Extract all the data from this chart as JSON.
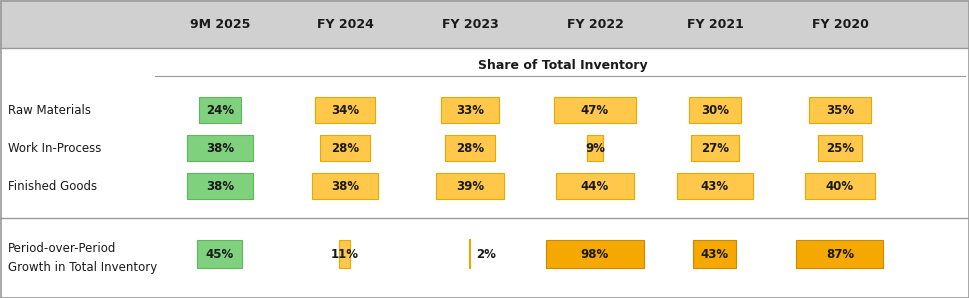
{
  "col_headers": [
    "9M 2025",
    "FY 2024",
    "FY 2023",
    "FY 2022",
    "FY 2021",
    "FY 2020"
  ],
  "row_labels": [
    "Raw Materials",
    "Work In-Process",
    "Finished Goods"
  ],
  "share_values": [
    [
      24,
      34,
      33,
      47,
      30,
      35
    ],
    [
      38,
      28,
      28,
      9,
      27,
      25
    ],
    [
      38,
      38,
      39,
      44,
      43,
      40
    ]
  ],
  "share_labels": [
    [
      "24%",
      "34%",
      "33%",
      "47%",
      "30%",
      "35%"
    ],
    [
      "38%",
      "28%",
      "28%",
      "9%",
      "27%",
      "25%"
    ],
    [
      "38%",
      "38%",
      "39%",
      "44%",
      "43%",
      "40%"
    ]
  ],
  "growth_values": [
    45,
    11,
    2,
    98,
    43,
    87
  ],
  "growth_labels": [
    "45%",
    "11%",
    "2%",
    "98%",
    "43%",
    "87%"
  ],
  "growth_row_label_line1": "Period-over-Period",
  "growth_row_label_line2": "Growth in Total Inventory",
  "section_label": "Share of Total Inventory",
  "green_fill": "#7FD17D",
  "green_border": "#5DB85B",
  "orange_fill": "#FFC84A",
  "orange_border": "#E8A800",
  "orange_dark_fill": "#F5A800",
  "orange_dark_border": "#CC8800",
  "header_bg": "#D0D0D0",
  "border_color": "#999999",
  "text_dark": "#1A1A1A",
  "white": "#FFFFFF"
}
